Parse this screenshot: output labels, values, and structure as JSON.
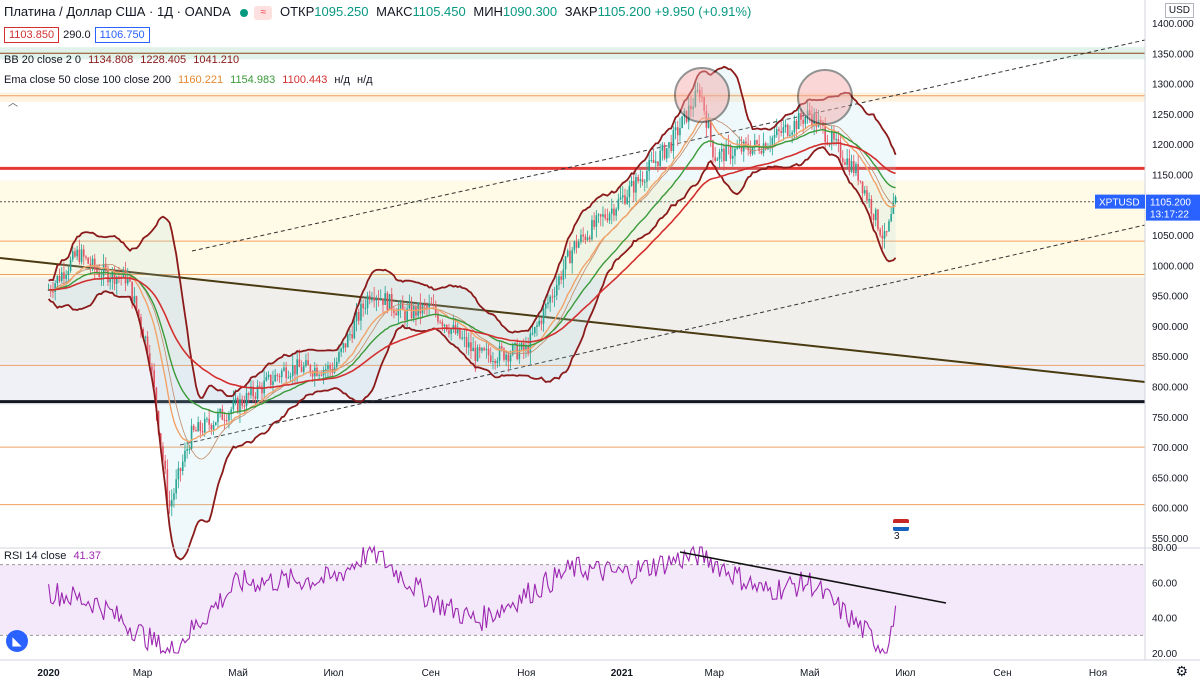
{
  "header": {
    "symbol": "Платина / Доллар США · 1Д · OANDA",
    "open_label": "ОТКР",
    "open": "1095.250",
    "high_label": "МАКС",
    "high": "1105.450",
    "low_label": "МИН",
    "low": "1090.300",
    "close_label": "ЗАКР",
    "close": "1105.200",
    "change": "+9.950 (+0.91%)"
  },
  "quote": {
    "bid": "1103.850",
    "spread": "290.0",
    "ask": "1106.750"
  },
  "indicators": {
    "bb_label": "BB 20 close 2 0",
    "bb_values": [
      "1134.808",
      "1228.405",
      "1041.210"
    ],
    "ema_label": "Ema close 50 close 100 close 200",
    "ema_values": [
      "1160.221",
      "1154.983",
      "1100.443",
      "н/д",
      "н/д"
    ],
    "rsi_label": "RSI 14 close",
    "rsi_value": "41.37"
  },
  "currency_button": "USD",
  "event_badge": "3",
  "colors": {
    "up": "#089981",
    "down": "#f23645",
    "bb": "#8b1a1a",
    "ema50": "#f2a36a",
    "ema100": "#3a9a3a",
    "ema200": "#d32f2f",
    "rsi": "#9c27b0",
    "price_tag": "#2962ff"
  },
  "chart_data": [
    {
      "type": "candlestick",
      "title": "Платина / Доллар США · 1Д · OANDA",
      "x_tick_labels": [
        "2020",
        "Мар",
        "Май",
        "Июл",
        "Сен",
        "Ноя",
        "2021",
        "Мар",
        "Май",
        "Июл",
        "Сен",
        "Ноя"
      ],
      "y_tick_labels": [
        "1400.000",
        "1350.000",
        "1300.000",
        "1250.000",
        "1200.000",
        "1150.000",
        "1100.000",
        "1050.000",
        "1000.000",
        "950.000",
        "900.000",
        "850.000",
        "800.000",
        "750.000",
        "700.000",
        "650.000",
        "600.000",
        "550.000"
      ],
      "ylim": [
        550,
        1400
      ],
      "last_price": {
        "symbol": "XPTUSD",
        "value": "1105.200",
        "countdown": "13:17:22"
      },
      "closes_approx": [
        {
          "x": "2020-01",
          "y": 960
        },
        {
          "x": "2020-01-20",
          "y": 1020
        },
        {
          "x": "2020-02",
          "y": 990
        },
        {
          "x": "2020-02-20",
          "y": 980
        },
        {
          "x": "2020-03-05",
          "y": 860
        },
        {
          "x": "2020-03-18",
          "y": 600
        },
        {
          "x": "2020-04",
          "y": 720
        },
        {
          "x": "2020-05",
          "y": 770
        },
        {
          "x": "2020-06",
          "y": 830
        },
        {
          "x": "2020-07",
          "y": 830
        },
        {
          "x": "2020-07-25",
          "y": 960
        },
        {
          "x": "2020-08-15",
          "y": 920
        },
        {
          "x": "2020-09",
          "y": 930
        },
        {
          "x": "2020-10",
          "y": 850
        },
        {
          "x": "2020-11",
          "y": 860
        },
        {
          "x": "2020-12",
          "y": 1030
        },
        {
          "x": "2021-01",
          "y": 1110
        },
        {
          "x": "2021-02",
          "y": 1200
        },
        {
          "x": "2021-02-20",
          "y": 1290
        },
        {
          "x": "2021-03",
          "y": 1180
        },
        {
          "x": "2021-04",
          "y": 1200
        },
        {
          "x": "2021-05",
          "y": 1250
        },
        {
          "x": "2021-06",
          "y": 1150
        },
        {
          "x": "2021-06-18",
          "y": 1040
        },
        {
          "x": "2021-06-25",
          "y": 1105
        }
      ],
      "horizontal_levels": [
        {
          "y": 1350,
          "color": "#8b4513"
        },
        {
          "y": 1280,
          "color": "#f0a060"
        },
        {
          "y": 1160,
          "color": "#e53935"
        },
        {
          "y": 1105,
          "color": "#555555"
        },
        {
          "y": 1040,
          "color": "#f0a060"
        },
        {
          "y": 985,
          "color": "#f0a060"
        },
        {
          "y": 835,
          "color": "#f0a060"
        },
        {
          "y": 775,
          "color": "#131722"
        },
        {
          "y": 700,
          "color": "#f0a060"
        },
        {
          "y": 605,
          "color": "#f0a060"
        }
      ]
    },
    {
      "type": "line",
      "title": "RSI 14 close",
      "y_tick_labels": [
        "80.00",
        "60.00",
        "40.00",
        "20.00"
      ],
      "ylim": [
        20,
        80
      ],
      "band": [
        30,
        70
      ],
      "values_approx": [
        {
          "x": "2020-01",
          "y": 55
        },
        {
          "x": "2020-02",
          "y": 48
        },
        {
          "x": "2020-03-18",
          "y": 20
        },
        {
          "x": "2020-05",
          "y": 60
        },
        {
          "x": "2020-07",
          "y": 62
        },
        {
          "x": "2020-07-25",
          "y": 78
        },
        {
          "x": "2020-09",
          "y": 50
        },
        {
          "x": "2020-10",
          "y": 38
        },
        {
          "x": "2020-12",
          "y": 68
        },
        {
          "x": "2021-01",
          "y": 65
        },
        {
          "x": "2021-02-20",
          "y": 76
        },
        {
          "x": "2021-04",
          "y": 55
        },
        {
          "x": "2021-05",
          "y": 60
        },
        {
          "x": "2021-06-18",
          "y": 22
        },
        {
          "x": "2021-06-25",
          "y": 41.37
        }
      ]
    }
  ]
}
